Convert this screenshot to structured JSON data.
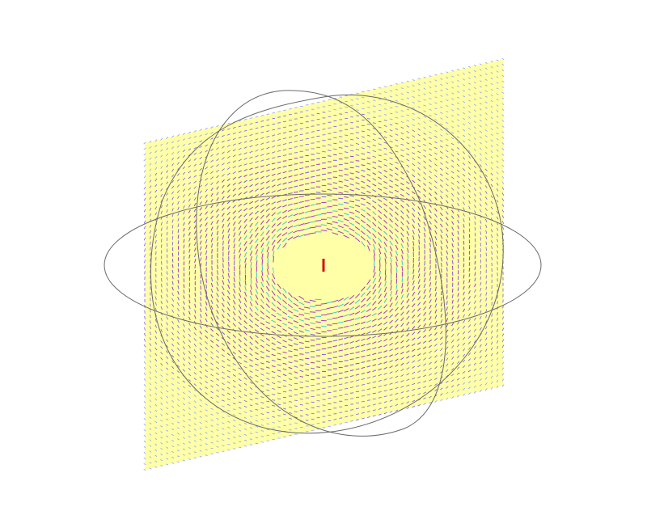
{
  "scene": {
    "plane_color": "#ffffa8",
    "ring_color": "#6a6a6a",
    "arrow_color_strong": "#a838c8",
    "arrow_color_mid": "#7a5cf0",
    "arrow_color_weak": "#8aa2ff",
    "arrow_color_cyan": "#3ec4d8",
    "current_color": "#d81010",
    "current_label": "I"
  }
}
